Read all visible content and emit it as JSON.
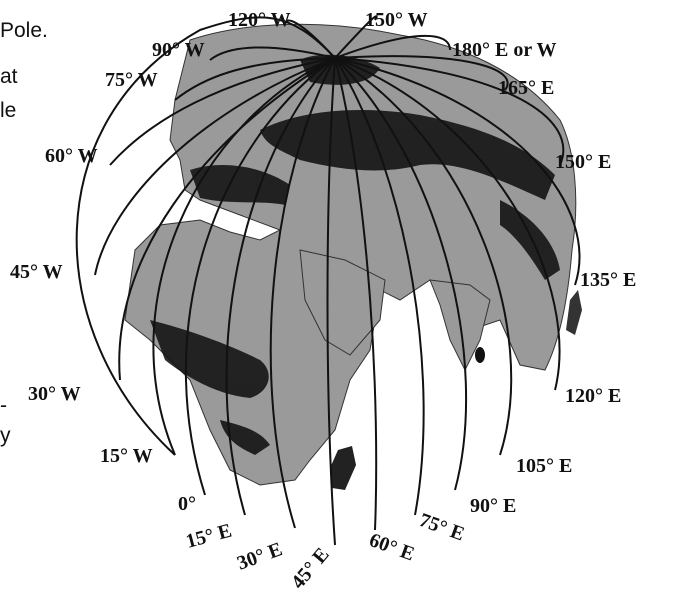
{
  "margin_text": [
    {
      "id": "pole",
      "text": "Pole."
    },
    {
      "id": "t2",
      "text": "at"
    },
    {
      "id": "t3",
      "text": "le"
    },
    {
      "id": "t4",
      "text": "-"
    },
    {
      "id": "t5",
      "text": "y"
    }
  ],
  "meridian_labels": [
    "120° W",
    "150° W",
    "90° W",
    "180° E or W",
    "75° W",
    "165° E",
    "60° W",
    "150° E",
    "45° W",
    "135° E",
    "30° W",
    "120° E",
    "15° W",
    "105° E",
    "0°",
    "90° E",
    "15° E",
    "75° E",
    "30° E",
    "60° E",
    "45° E"
  ],
  "colors": {
    "ocean": "#ffffff",
    "land": "#9a9a9a",
    "vegetation": "#111111",
    "lines": "#111111"
  }
}
